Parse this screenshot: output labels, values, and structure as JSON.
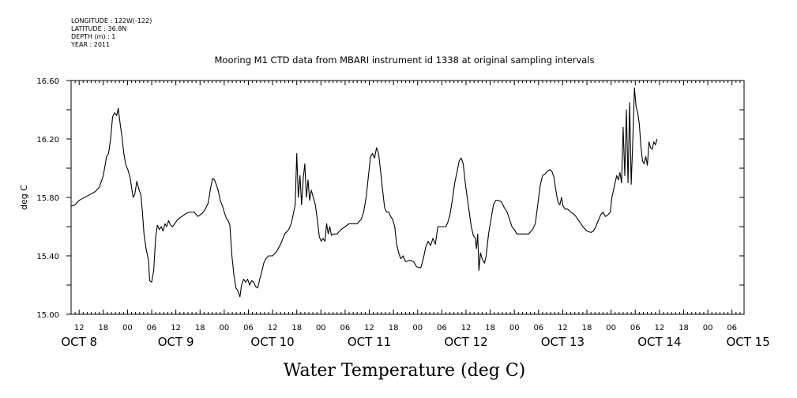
{
  "meta": {
    "longitude": "LONGITUDE : 122W(-122)",
    "latitude": "LATITUDE : 36.8N",
    "depth": "DEPTH (m) : 1",
    "year": "YEAR : 2011"
  },
  "chart_data": {
    "type": "line",
    "title": "Mooring M1 CTD data from MBARI instrument id 1338 at original sampling intervals",
    "xlabel": "Water Temperature (deg C)",
    "ylabel": "deg C",
    "ylim": [
      15.0,
      16.6
    ],
    "xlim": [
      10,
      177
    ],
    "x_unit": "hours since OCT 8 00:00",
    "y_ticks": [
      "15.00",
      "15.40",
      "15.80",
      "16.20",
      "16.60"
    ],
    "y_tick_values": [
      15.0,
      15.4,
      15.8,
      16.2,
      16.6
    ],
    "hour_ticks": [
      {
        "x": 12,
        "label": "12"
      },
      {
        "x": 18,
        "label": "18"
      },
      {
        "x": 24,
        "label": "00"
      },
      {
        "x": 30,
        "label": "06"
      },
      {
        "x": 36,
        "label": "12"
      },
      {
        "x": 42,
        "label": "18"
      },
      {
        "x": 48,
        "label": "00"
      },
      {
        "x": 54,
        "label": "06"
      },
      {
        "x": 60,
        "label": "12"
      },
      {
        "x": 66,
        "label": "18"
      },
      {
        "x": 72,
        "label": "00"
      },
      {
        "x": 78,
        "label": "06"
      },
      {
        "x": 84,
        "label": "12"
      },
      {
        "x": 90,
        "label": "18"
      },
      {
        "x": 96,
        "label": "00"
      },
      {
        "x": 102,
        "label": "06"
      },
      {
        "x": 108,
        "label": "12"
      },
      {
        "x": 114,
        "label": "18"
      },
      {
        "x": 120,
        "label": "00"
      },
      {
        "x": 126,
        "label": "06"
      },
      {
        "x": 132,
        "label": "12"
      },
      {
        "x": 138,
        "label": "18"
      },
      {
        "x": 144,
        "label": "00"
      },
      {
        "x": 150,
        "label": "06"
      },
      {
        "x": 156,
        "label": "12"
      },
      {
        "x": 162,
        "label": "18"
      },
      {
        "x": 168,
        "label": "00"
      },
      {
        "x": 174,
        "label": "06"
      }
    ],
    "date_labels": [
      {
        "x": 12,
        "label": "OCT  8"
      },
      {
        "x": 36,
        "label": "OCT  9"
      },
      {
        "x": 60,
        "label": "OCT 10"
      },
      {
        "x": 84,
        "label": "OCT 11"
      },
      {
        "x": 108,
        "label": "OCT 12"
      },
      {
        "x": 132,
        "label": "OCT 13"
      },
      {
        "x": 156,
        "label": "OCT 14"
      },
      {
        "x": 178,
        "label": "OCT 15"
      }
    ],
    "grid": false,
    "series": [
      {
        "color": "#000000",
        "points": [
          [
            10,
            15.74
          ],
          [
            11,
            15.75
          ],
          [
            12,
            15.78
          ],
          [
            14,
            15.81
          ],
          [
            16,
            15.84
          ],
          [
            17,
            15.87
          ],
          [
            18,
            15.95
          ],
          [
            18.8,
            16.08
          ],
          [
            19.3,
            16.1
          ],
          [
            19.8,
            16.2
          ],
          [
            20.3,
            16.35
          ],
          [
            20.8,
            16.38
          ],
          [
            21.3,
            16.36
          ],
          [
            21.7,
            16.41
          ],
          [
            22.2,
            16.3
          ],
          [
            22.6,
            16.22
          ],
          [
            23.1,
            16.1
          ],
          [
            23.6,
            16.02
          ],
          [
            24.1,
            15.99
          ],
          [
            24.7,
            15.93
          ],
          [
            25.0,
            15.87
          ],
          [
            25.4,
            15.8
          ],
          [
            25.8,
            15.82
          ],
          [
            26.3,
            15.91
          ],
          [
            26.9,
            15.85
          ],
          [
            27.3,
            15.82
          ],
          [
            27.7,
            15.7
          ],
          [
            28.1,
            15.55
          ],
          [
            28.6,
            15.45
          ],
          [
            29.2,
            15.37
          ],
          [
            29.5,
            15.23
          ],
          [
            30.0,
            15.22
          ],
          [
            30.5,
            15.3
          ],
          [
            31.0,
            15.53
          ],
          [
            31.4,
            15.61
          ],
          [
            31.9,
            15.58
          ],
          [
            32.4,
            15.6
          ],
          [
            32.8,
            15.57
          ],
          [
            33.3,
            15.62
          ],
          [
            33.7,
            15.6
          ],
          [
            34.2,
            15.64
          ],
          [
            34.7,
            15.61
          ],
          [
            35.2,
            15.6
          ],
          [
            35.7,
            15.62
          ],
          [
            36.5,
            15.65
          ],
          [
            37.5,
            15.67
          ],
          [
            38.5,
            15.69
          ],
          [
            39.5,
            15.7
          ],
          [
            40.5,
            15.7
          ],
          [
            41.5,
            15.67
          ],
          [
            42.5,
            15.69
          ],
          [
            43.3,
            15.72
          ],
          [
            44.0,
            15.76
          ],
          [
            44.6,
            15.86
          ],
          [
            45.1,
            15.93
          ],
          [
            45.6,
            15.92
          ],
          [
            46.0,
            15.89
          ],
          [
            46.5,
            15.85
          ],
          [
            47.0,
            15.78
          ],
          [
            47.6,
            15.74
          ],
          [
            48.0,
            15.7
          ],
          [
            48.5,
            15.66
          ],
          [
            49.0,
            15.64
          ],
          [
            49.4,
            15.61
          ],
          [
            49.9,
            15.4
          ],
          [
            50.4,
            15.27
          ],
          [
            50.9,
            15.18
          ],
          [
            51.4,
            15.16
          ],
          [
            51.9,
            15.12
          ],
          [
            52.3,
            15.2
          ],
          [
            52.8,
            15.24
          ],
          [
            53.3,
            15.22
          ],
          [
            53.8,
            15.24
          ],
          [
            54.3,
            15.2
          ],
          [
            54.8,
            15.23
          ],
          [
            55.3,
            15.22
          ],
          [
            55.8,
            15.19
          ],
          [
            56.3,
            15.18
          ],
          [
            56.8,
            15.24
          ],
          [
            57.3,
            15.29
          ],
          [
            57.8,
            15.35
          ],
          [
            58.3,
            15.38
          ],
          [
            59.0,
            15.4
          ],
          [
            60.0,
            15.4
          ],
          [
            61.0,
            15.43
          ],
          [
            62.0,
            15.48
          ],
          [
            63.0,
            15.55
          ],
          [
            64.0,
            15.58
          ],
          [
            64.6,
            15.62
          ],
          [
            65.1,
            15.68
          ],
          [
            65.6,
            15.75
          ],
          [
            66.0,
            16.1
          ],
          [
            66.4,
            15.8
          ],
          [
            66.8,
            15.95
          ],
          [
            67.2,
            15.75
          ],
          [
            67.6,
            15.93
          ],
          [
            68.0,
            16.03
          ],
          [
            68.4,
            15.8
          ],
          [
            68.8,
            15.92
          ],
          [
            69.2,
            15.78
          ],
          [
            69.6,
            15.85
          ],
          [
            70.1,
            15.8
          ],
          [
            70.6,
            15.75
          ],
          [
            71.1,
            15.65
          ],
          [
            71.6,
            15.53
          ],
          [
            72.1,
            15.5
          ],
          [
            72.5,
            15.52
          ],
          [
            73.0,
            15.5
          ],
          [
            73.4,
            15.62
          ],
          [
            73.8,
            15.55
          ],
          [
            74.2,
            15.6
          ],
          [
            74.6,
            15.54
          ],
          [
            75.1,
            15.55
          ],
          [
            76.0,
            15.55
          ],
          [
            77.0,
            15.58
          ],
          [
            78.0,
            15.6
          ],
          [
            79.0,
            15.62
          ],
          [
            80.0,
            15.62
          ],
          [
            81.0,
            15.62
          ],
          [
            82.0,
            15.65
          ],
          [
            82.6,
            15.7
          ],
          [
            83.2,
            15.8
          ],
          [
            83.8,
            15.95
          ],
          [
            84.3,
            16.08
          ],
          [
            84.8,
            16.1
          ],
          [
            85.3,
            16.07
          ],
          [
            85.8,
            16.14
          ],
          [
            86.3,
            16.1
          ],
          [
            86.8,
            15.98
          ],
          [
            87.3,
            15.85
          ],
          [
            87.8,
            15.73
          ],
          [
            88.3,
            15.7
          ],
          [
            88.8,
            15.7
          ],
          [
            89.3,
            15.67
          ],
          [
            89.8,
            15.65
          ],
          [
            90.3,
            15.6
          ],
          [
            90.8,
            15.48
          ],
          [
            91.3,
            15.42
          ],
          [
            91.8,
            15.38
          ],
          [
            92.4,
            15.4
          ],
          [
            93.0,
            15.36
          ],
          [
            94.0,
            15.37
          ],
          [
            95.0,
            15.36
          ],
          [
            95.6,
            15.33
          ],
          [
            96.2,
            15.32
          ],
          [
            96.8,
            15.32
          ],
          [
            97.4,
            15.38
          ],
          [
            98.0,
            15.46
          ],
          [
            98.6,
            15.5
          ],
          [
            99.2,
            15.47
          ],
          [
            99.8,
            15.52
          ],
          [
            100.4,
            15.48
          ],
          [
            101.0,
            15.6
          ],
          [
            102.0,
            15.6
          ],
          [
            103.0,
            15.6
          ],
          [
            103.5,
            15.63
          ],
          [
            104.0,
            15.68
          ],
          [
            104.6,
            15.78
          ],
          [
            105.2,
            15.9
          ],
          [
            105.8,
            15.98
          ],
          [
            106.3,
            16.05
          ],
          [
            106.8,
            16.07
          ],
          [
            107.3,
            16.03
          ],
          [
            107.8,
            15.9
          ],
          [
            108.3,
            15.8
          ],
          [
            108.8,
            15.7
          ],
          [
            109.3,
            15.6
          ],
          [
            109.8,
            15.54
          ],
          [
            110.3,
            15.52
          ],
          [
            110.6,
            15.45
          ],
          [
            110.9,
            15.55
          ],
          [
            111.2,
            15.3
          ],
          [
            111.6,
            15.42
          ],
          [
            112.0,
            15.38
          ],
          [
            112.6,
            15.35
          ],
          [
            113.0,
            15.4
          ],
          [
            113.6,
            15.55
          ],
          [
            114.2,
            15.65
          ],
          [
            114.8,
            15.75
          ],
          [
            115.4,
            15.78
          ],
          [
            116.0,
            15.78
          ],
          [
            116.8,
            15.77
          ],
          [
            117.5,
            15.73
          ],
          [
            118.2,
            15.7
          ],
          [
            118.8,
            15.65
          ],
          [
            119.4,
            15.6
          ],
          [
            120.0,
            15.58
          ],
          [
            120.6,
            15.55
          ],
          [
            121.5,
            15.55
          ],
          [
            122.5,
            15.55
          ],
          [
            123.5,
            15.55
          ],
          [
            124.5,
            15.58
          ],
          [
            125.2,
            15.62
          ],
          [
            125.8,
            15.75
          ],
          [
            126.4,
            15.88
          ],
          [
            127.0,
            15.95
          ],
          [
            127.6,
            15.96
          ],
          [
            128.2,
            15.98
          ],
          [
            128.8,
            15.99
          ],
          [
            129.3,
            15.98
          ],
          [
            129.8,
            15.94
          ],
          [
            130.3,
            15.85
          ],
          [
            130.8,
            15.77
          ],
          [
            131.3,
            15.75
          ],
          [
            131.7,
            15.8
          ],
          [
            132.1,
            15.74
          ],
          [
            132.6,
            15.72
          ],
          [
            133.2,
            15.72
          ],
          [
            134.0,
            15.7
          ],
          [
            135.0,
            15.68
          ],
          [
            136.0,
            15.64
          ],
          [
            137.0,
            15.6
          ],
          [
            138.0,
            15.57
          ],
          [
            139.0,
            15.56
          ],
          [
            139.6,
            15.57
          ],
          [
            140.2,
            15.6
          ],
          [
            140.8,
            15.64
          ],
          [
            141.4,
            15.68
          ],
          [
            142.0,
            15.7
          ],
          [
            142.6,
            15.67
          ],
          [
            143.2,
            15.68
          ],
          [
            143.8,
            15.7
          ],
          [
            144.2,
            15.8
          ],
          [
            144.6,
            15.85
          ],
          [
            145.0,
            15.9
          ],
          [
            145.4,
            15.95
          ],
          [
            145.8,
            15.92
          ],
          [
            146.2,
            15.97
          ],
          [
            146.6,
            15.9
          ],
          [
            147.0,
            16.28
          ],
          [
            147.4,
            15.95
          ],
          [
            147.8,
            16.4
          ],
          [
            148.2,
            15.9
          ],
          [
            148.6,
            16.45
          ],
          [
            149.0,
            15.89
          ],
          [
            149.4,
            16.2
          ],
          [
            149.8,
            16.55
          ],
          [
            150.2,
            16.42
          ],
          [
            150.6,
            16.38
          ],
          [
            151.0,
            16.3
          ],
          [
            151.4,
            16.15
          ],
          [
            151.8,
            16.05
          ],
          [
            152.2,
            16.03
          ],
          [
            152.6,
            16.08
          ],
          [
            153.0,
            16.02
          ],
          [
            153.4,
            16.18
          ],
          [
            153.8,
            16.14
          ],
          [
            154.2,
            16.13
          ],
          [
            154.6,
            16.18
          ],
          [
            155.0,
            16.16
          ],
          [
            155.4,
            16.2
          ]
        ]
      }
    ]
  }
}
